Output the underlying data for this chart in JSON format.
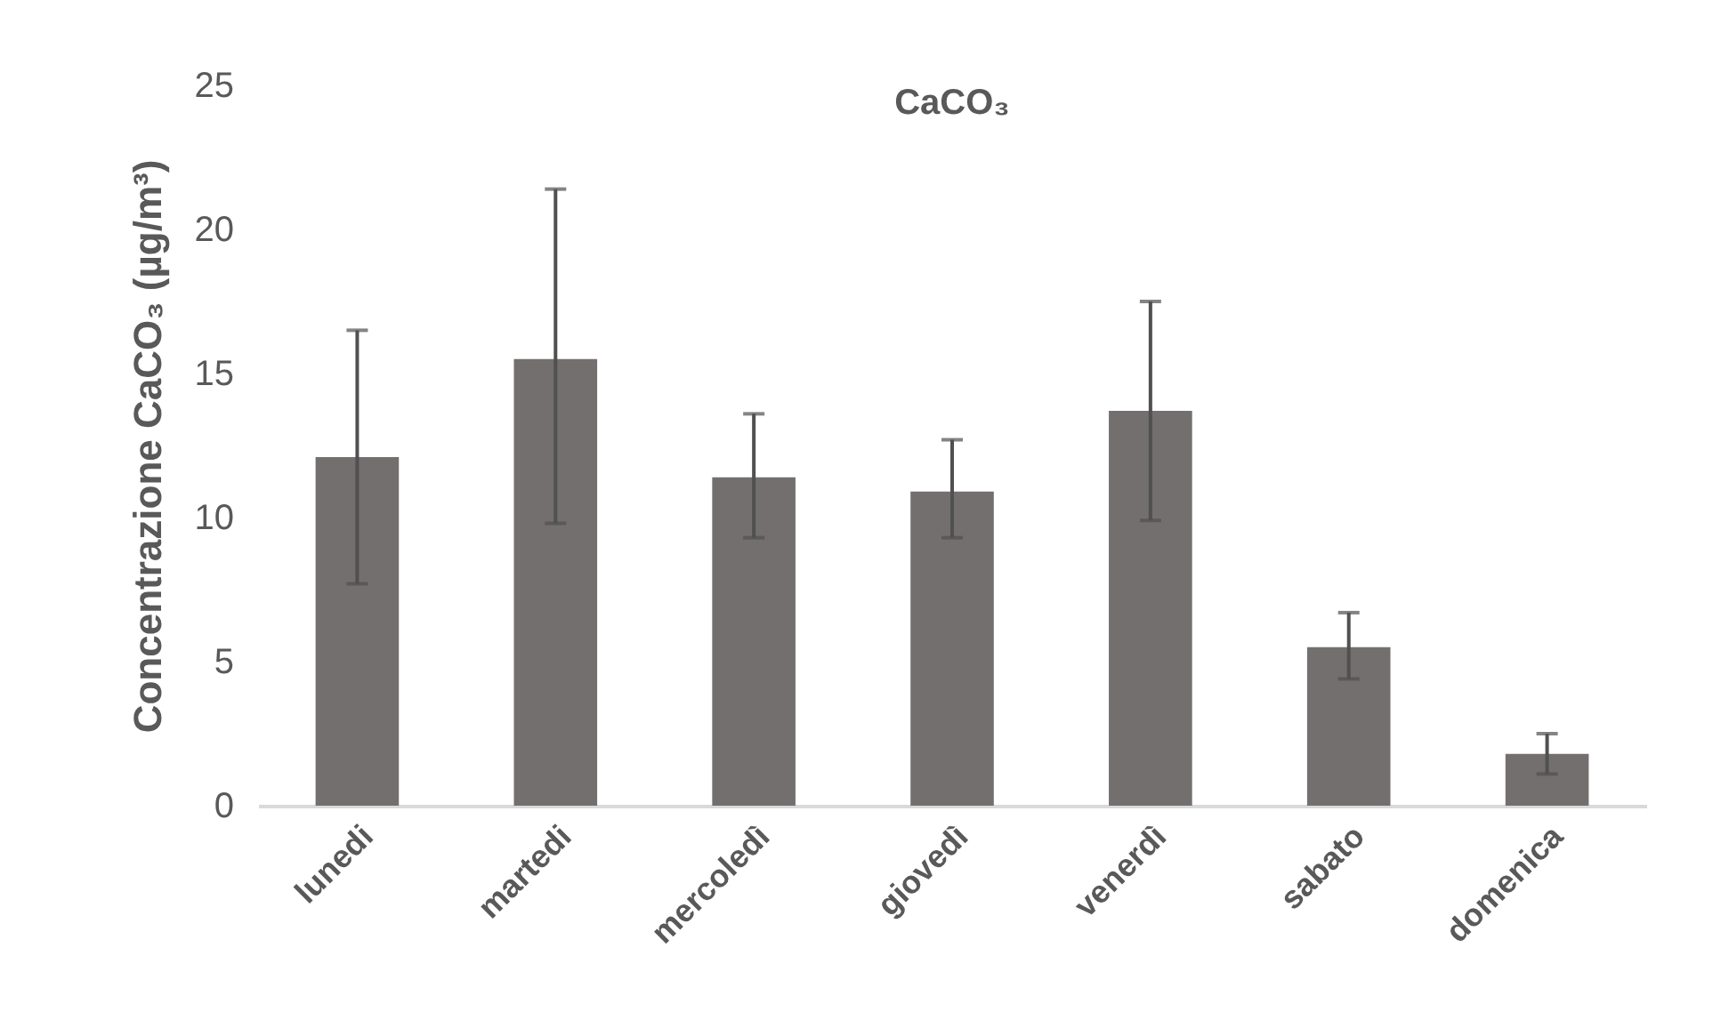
{
  "chart_data": {
    "type": "bar",
    "title": "CaCO₃",
    "ylabel": "Concentrazione CaCO₃ (µg/m³)",
    "categories": [
      "lunedi",
      "martedi",
      "mercoledì",
      "giovedì",
      "venerdì",
      "sabato",
      "domenica"
    ],
    "values": [
      12.1,
      15.5,
      11.4,
      10.9,
      13.7,
      5.5,
      1.8
    ],
    "errors": [
      [
        7.7,
        16.5
      ],
      [
        9.8,
        21.4
      ],
      [
        9.3,
        13.6
      ],
      [
        9.3,
        12.7
      ],
      [
        9.9,
        17.5
      ],
      [
        4.4,
        6.7
      ],
      [
        1.1,
        2.5
      ]
    ],
    "color": "#736f6e",
    "ylim": [
      0,
      25
    ],
    "yticks": [
      0,
      5,
      10,
      15,
      20,
      25
    ],
    "grid": false
  }
}
